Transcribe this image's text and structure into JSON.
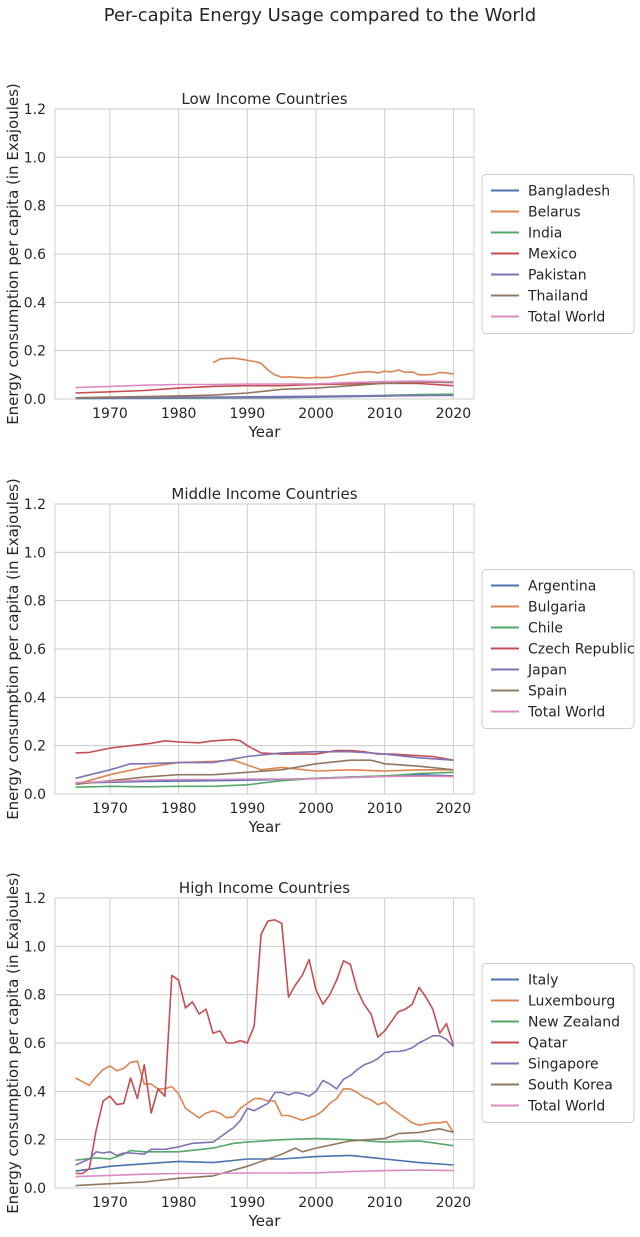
{
  "figure": {
    "suptitle": "Per-capita Energy Usage compared to the World"
  },
  "chart_data": [
    {
      "type": "line",
      "title": "Low Income Countries",
      "xlabel": "Year",
      "ylabel": "Energy consumption per capita (in Exajoules)",
      "xlim": [
        1962,
        2023
      ],
      "ylim": [
        0,
        1.2
      ],
      "xticks": [
        "1970",
        "1980",
        "1990",
        "2000",
        "2010",
        "2020"
      ],
      "yticks": [
        "0.0",
        "0.2",
        "0.4",
        "0.6",
        "0.8",
        "1.0",
        "1.2"
      ],
      "grid": true,
      "legend": "right",
      "series": [
        {
          "name": "Bangladesh",
          "color": "#4c72b0",
          "x": [
            1965,
            1975,
            1985,
            1995,
            2005,
            2015,
            2020
          ],
          "values": [
            0.002,
            0.003,
            0.004,
            0.006,
            0.01,
            0.015,
            0.018
          ]
        },
        {
          "name": "Belarus",
          "color": "#dd8452",
          "x": [
            1985,
            1986,
            1987,
            1988,
            1989,
            1990,
            1991,
            1992,
            1993,
            1994,
            1995,
            1996,
            1997,
            1998,
            1999,
            2000,
            2001,
            2002,
            2003,
            2004,
            2005,
            2006,
            2007,
            2008,
            2009,
            2010,
            2011,
            2012,
            2013,
            2014,
            2015,
            2016,
            2017,
            2018,
            2019,
            2020
          ],
          "values": [
            0.15,
            0.165,
            0.168,
            0.169,
            0.165,
            0.16,
            0.155,
            0.148,
            0.12,
            0.1,
            0.09,
            0.092,
            0.09,
            0.088,
            0.087,
            0.09,
            0.088,
            0.09,
            0.095,
            0.1,
            0.105,
            0.11,
            0.112,
            0.113,
            0.108,
            0.115,
            0.112,
            0.12,
            0.11,
            0.112,
            0.1,
            0.1,
            0.102,
            0.11,
            0.108,
            0.103
          ]
        },
        {
          "name": "India",
          "color": "#55a868",
          "x": [
            1965,
            1975,
            1985,
            1995,
            2005,
            2015,
            2020
          ],
          "values": [
            0.004,
            0.005,
            0.006,
            0.009,
            0.012,
            0.018,
            0.02
          ]
        },
        {
          "name": "Mexico",
          "color": "#c44e52",
          "x": [
            1965,
            1970,
            1975,
            1980,
            1985,
            1990,
            1995,
            2000,
            2005,
            2010,
            2015,
            2020
          ],
          "values": [
            0.025,
            0.03,
            0.035,
            0.045,
            0.052,
            0.055,
            0.055,
            0.06,
            0.062,
            0.065,
            0.064,
            0.055
          ]
        },
        {
          "name": "Pakistan",
          "color": "#8172b3",
          "x": [
            1965,
            1975,
            1985,
            1995,
            2005,
            2015,
            2020
          ],
          "values": [
            0.005,
            0.006,
            0.008,
            0.01,
            0.013,
            0.014,
            0.015
          ]
        },
        {
          "name": "Thailand",
          "color": "#937860",
          "x": [
            1965,
            1970,
            1975,
            1980,
            1985,
            1990,
            1995,
            2000,
            2005,
            2010,
            2015,
            2020
          ],
          "values": [
            0.005,
            0.008,
            0.01,
            0.013,
            0.016,
            0.025,
            0.04,
            0.045,
            0.055,
            0.065,
            0.07,
            0.068
          ]
        },
        {
          "name": "Total World",
          "color": "#da8bc3",
          "x": [
            1965,
            1970,
            1975,
            1980,
            1985,
            1990,
            1995,
            2000,
            2005,
            2010,
            2015,
            2020
          ],
          "values": [
            0.047,
            0.052,
            0.057,
            0.06,
            0.06,
            0.062,
            0.062,
            0.063,
            0.068,
            0.072,
            0.074,
            0.072
          ]
        }
      ]
    },
    {
      "type": "line",
      "title": "Middle Income Countries",
      "xlabel": "Year",
      "ylabel": "Energy consumption per capita (in Exajoules)",
      "xlim": [
        1962,
        2023
      ],
      "ylim": [
        0,
        1.2
      ],
      "xticks": [
        "1970",
        "1980",
        "1990",
        "2000",
        "2010",
        "2020"
      ],
      "yticks": [
        "0.0",
        "0.2",
        "0.4",
        "0.6",
        "0.8",
        "1.0",
        "1.2"
      ],
      "grid": true,
      "legend": "right",
      "series": [
        {
          "name": "Argentina",
          "color": "#4c72b0",
          "x": [
            1965,
            1975,
            1985,
            1995,
            2005,
            2015,
            2020
          ],
          "values": [
            0.045,
            0.052,
            0.055,
            0.06,
            0.07,
            0.08,
            0.075
          ]
        },
        {
          "name": "Bulgaria",
          "color": "#dd8452",
          "x": [
            1965,
            1970,
            1975,
            1980,
            1985,
            1988,
            1990,
            1992,
            1995,
            2000,
            2005,
            2010,
            2015,
            2020
          ],
          "values": [
            0.04,
            0.08,
            0.11,
            0.13,
            0.135,
            0.14,
            0.12,
            0.1,
            0.11,
            0.095,
            0.1,
            0.095,
            0.1,
            0.1
          ]
        },
        {
          "name": "Chile",
          "color": "#55a868",
          "x": [
            1965,
            1970,
            1975,
            1980,
            1985,
            1990,
            1995,
            2000,
            2005,
            2010,
            2015,
            2020
          ],
          "values": [
            0.028,
            0.032,
            0.03,
            0.032,
            0.032,
            0.038,
            0.055,
            0.065,
            0.07,
            0.075,
            0.085,
            0.09
          ]
        },
        {
          "name": "Czech Republic",
          "color": "#c44e52",
          "x": [
            1965,
            1967,
            1970,
            1973,
            1976,
            1978,
            1980,
            1983,
            1985,
            1988,
            1989,
            1990,
            1992,
            1995,
            1998,
            2000,
            2003,
            2005,
            2007,
            2009,
            2011,
            2014,
            2017,
            2020
          ],
          "values": [
            0.17,
            0.172,
            0.19,
            0.2,
            0.21,
            0.22,
            0.215,
            0.212,
            0.22,
            0.225,
            0.22,
            0.2,
            0.17,
            0.165,
            0.165,
            0.165,
            0.18,
            0.18,
            0.175,
            0.165,
            0.165,
            0.16,
            0.155,
            0.14
          ]
        },
        {
          "name": "Japan",
          "color": "#8172b3",
          "x": [
            1965,
            1970,
            1973,
            1975,
            1980,
            1985,
            1990,
            1995,
            2000,
            2005,
            2008,
            2010,
            2015,
            2020
          ],
          "values": [
            0.065,
            0.1,
            0.125,
            0.125,
            0.13,
            0.13,
            0.155,
            0.17,
            0.175,
            0.175,
            0.17,
            0.165,
            0.15,
            0.14
          ]
        },
        {
          "name": "Spain",
          "color": "#937860",
          "x": [
            1965,
            1970,
            1975,
            1980,
            1985,
            1990,
            1995,
            2000,
            2005,
            2008,
            2010,
            2015,
            2020
          ],
          "values": [
            0.04,
            0.055,
            0.07,
            0.08,
            0.08,
            0.09,
            0.1,
            0.125,
            0.14,
            0.14,
            0.125,
            0.115,
            0.1
          ]
        },
        {
          "name": "Total World",
          "color": "#da8bc3",
          "x": [
            1965,
            1970,
            1975,
            1980,
            1985,
            1990,
            1995,
            2000,
            2005,
            2010,
            2015,
            2020
          ],
          "values": [
            0.047,
            0.052,
            0.057,
            0.06,
            0.06,
            0.062,
            0.062,
            0.063,
            0.068,
            0.072,
            0.074,
            0.072
          ]
        }
      ]
    },
    {
      "type": "line",
      "title": "High Income Countries",
      "xlabel": "Year",
      "ylabel": "Energy consumption per capita (in Exajoules)",
      "xlim": [
        1962,
        2023
      ],
      "ylim": [
        0,
        1.2
      ],
      "xticks": [
        "1970",
        "1980",
        "1990",
        "2000",
        "2010",
        "2020"
      ],
      "yticks": [
        "0.0",
        "0.2",
        "0.4",
        "0.6",
        "0.8",
        "1.0",
        "1.2"
      ],
      "grid": true,
      "legend": "right",
      "series": [
        {
          "name": "Italy",
          "color": "#4c72b0",
          "x": [
            1965,
            1970,
            1975,
            1980,
            1985,
            1990,
            1995,
            2000,
            2005,
            2010,
            2015,
            2020
          ],
          "values": [
            0.07,
            0.09,
            0.1,
            0.11,
            0.105,
            0.12,
            0.12,
            0.13,
            0.135,
            0.12,
            0.105,
            0.095
          ]
        },
        {
          "name": "Luxembourg",
          "color": "#dd8452",
          "x": [
            1965,
            1966,
            1967,
            1968,
            1969,
            1970,
            1971,
            1972,
            1973,
            1974,
            1975,
            1976,
            1977,
            1978,
            1979,
            1980,
            1981,
            1982,
            1983,
            1984,
            1985,
            1986,
            1987,
            1988,
            1989,
            1990,
            1991,
            1992,
            1993,
            1994,
            1995,
            1996,
            1997,
            1998,
            1999,
            2000,
            2001,
            2002,
            2003,
            2004,
            2005,
            2006,
            2007,
            2008,
            2009,
            2010,
            2011,
            2012,
            2013,
            2014,
            2015,
            2016,
            2017,
            2018,
            2019,
            2020
          ],
          "values": [
            0.455,
            0.44,
            0.425,
            0.46,
            0.49,
            0.505,
            0.485,
            0.495,
            0.52,
            0.525,
            0.43,
            0.43,
            0.41,
            0.41,
            0.42,
            0.39,
            0.33,
            0.31,
            0.29,
            0.31,
            0.32,
            0.31,
            0.29,
            0.295,
            0.33,
            0.35,
            0.37,
            0.37,
            0.36,
            0.36,
            0.3,
            0.3,
            0.29,
            0.28,
            0.29,
            0.3,
            0.32,
            0.35,
            0.37,
            0.41,
            0.41,
            0.395,
            0.375,
            0.365,
            0.345,
            0.355,
            0.33,
            0.31,
            0.29,
            0.27,
            0.26,
            0.265,
            0.27,
            0.27,
            0.275,
            0.23
          ]
        },
        {
          "name": "New Zealand",
          "color": "#55a868",
          "x": [
            1965,
            1968,
            1970,
            1972,
            1973,
            1975,
            1980,
            1985,
            1988,
            1990,
            1995,
            2000,
            2005,
            2010,
            2015,
            2020
          ],
          "values": [
            0.115,
            0.125,
            0.12,
            0.14,
            0.155,
            0.15,
            0.15,
            0.165,
            0.185,
            0.19,
            0.2,
            0.205,
            0.2,
            0.19,
            0.195,
            0.175
          ]
        },
        {
          "name": "Qatar",
          "color": "#c44e52",
          "x": [
            1965,
            1966,
            1967,
            1968,
            1969,
            1970,
            1971,
            1972,
            1973,
            1974,
            1975,
            1976,
            1977,
            1978,
            1979,
            1980,
            1981,
            1982,
            1983,
            1984,
            1985,
            1986,
            1987,
            1988,
            1989,
            1990,
            1991,
            1992,
            1993,
            1994,
            1995,
            1996,
            1997,
            1998,
            1999,
            2000,
            2001,
            2002,
            2003,
            2004,
            2005,
            2006,
            2007,
            2008,
            2009,
            2010,
            2011,
            2012,
            2013,
            2014,
            2015,
            2016,
            2017,
            2018,
            2019,
            2020
          ],
          "values": [
            0.06,
            0.06,
            0.08,
            0.24,
            0.36,
            0.38,
            0.345,
            0.35,
            0.455,
            0.37,
            0.51,
            0.31,
            0.41,
            0.38,
            0.88,
            0.86,
            0.745,
            0.77,
            0.72,
            0.74,
            0.64,
            0.65,
            0.6,
            0.6,
            0.61,
            0.6,
            0.67,
            1.05,
            1.105,
            1.11,
            1.095,
            0.79,
            0.84,
            0.88,
            0.945,
            0.82,
            0.76,
            0.8,
            0.86,
            0.94,
            0.925,
            0.82,
            0.76,
            0.72,
            0.625,
            0.65,
            0.69,
            0.73,
            0.74,
            0.76,
            0.83,
            0.79,
            0.74,
            0.64,
            0.68,
            0.59
          ]
        },
        {
          "name": "Singapore",
          "color": "#8172b3",
          "x": [
            1965,
            1967,
            1968,
            1969,
            1970,
            1971,
            1972,
            1973,
            1975,
            1976,
            1978,
            1980,
            1982,
            1985,
            1987,
            1988,
            1989,
            1990,
            1991,
            1992,
            1993,
            1994,
            1995,
            1996,
            1997,
            1998,
            1999,
            2000,
            2001,
            2002,
            2003,
            2004,
            2005,
            2006,
            2007,
            2008,
            2009,
            2010,
            2011,
            2012,
            2013,
            2014,
            2015,
            2016,
            2017,
            2018,
            2019,
            2020
          ],
          "values": [
            0.095,
            0.12,
            0.15,
            0.145,
            0.15,
            0.135,
            0.145,
            0.145,
            0.14,
            0.16,
            0.16,
            0.17,
            0.185,
            0.19,
            0.23,
            0.25,
            0.28,
            0.33,
            0.32,
            0.335,
            0.35,
            0.395,
            0.395,
            0.385,
            0.395,
            0.39,
            0.38,
            0.4,
            0.445,
            0.43,
            0.41,
            0.45,
            0.465,
            0.49,
            0.51,
            0.52,
            0.535,
            0.56,
            0.565,
            0.565,
            0.57,
            0.58,
            0.6,
            0.615,
            0.63,
            0.63,
            0.615,
            0.585
          ]
        },
        {
          "name": "South Korea",
          "color": "#937860",
          "x": [
            1965,
            1970,
            1975,
            1980,
            1985,
            1990,
            1995,
            1997,
            1998,
            2000,
            2005,
            2010,
            2012,
            2015,
            2018,
            2020
          ],
          "values": [
            0.01,
            0.018,
            0.025,
            0.04,
            0.05,
            0.09,
            0.14,
            0.165,
            0.15,
            0.165,
            0.195,
            0.205,
            0.225,
            0.23,
            0.245,
            0.23
          ]
        },
        {
          "name": "Total World",
          "color": "#da8bc3",
          "x": [
            1965,
            1970,
            1975,
            1980,
            1985,
            1990,
            1995,
            2000,
            2005,
            2010,
            2015,
            2020
          ],
          "values": [
            0.047,
            0.052,
            0.057,
            0.06,
            0.06,
            0.062,
            0.062,
            0.063,
            0.068,
            0.072,
            0.074,
            0.072
          ]
        }
      ]
    }
  ]
}
